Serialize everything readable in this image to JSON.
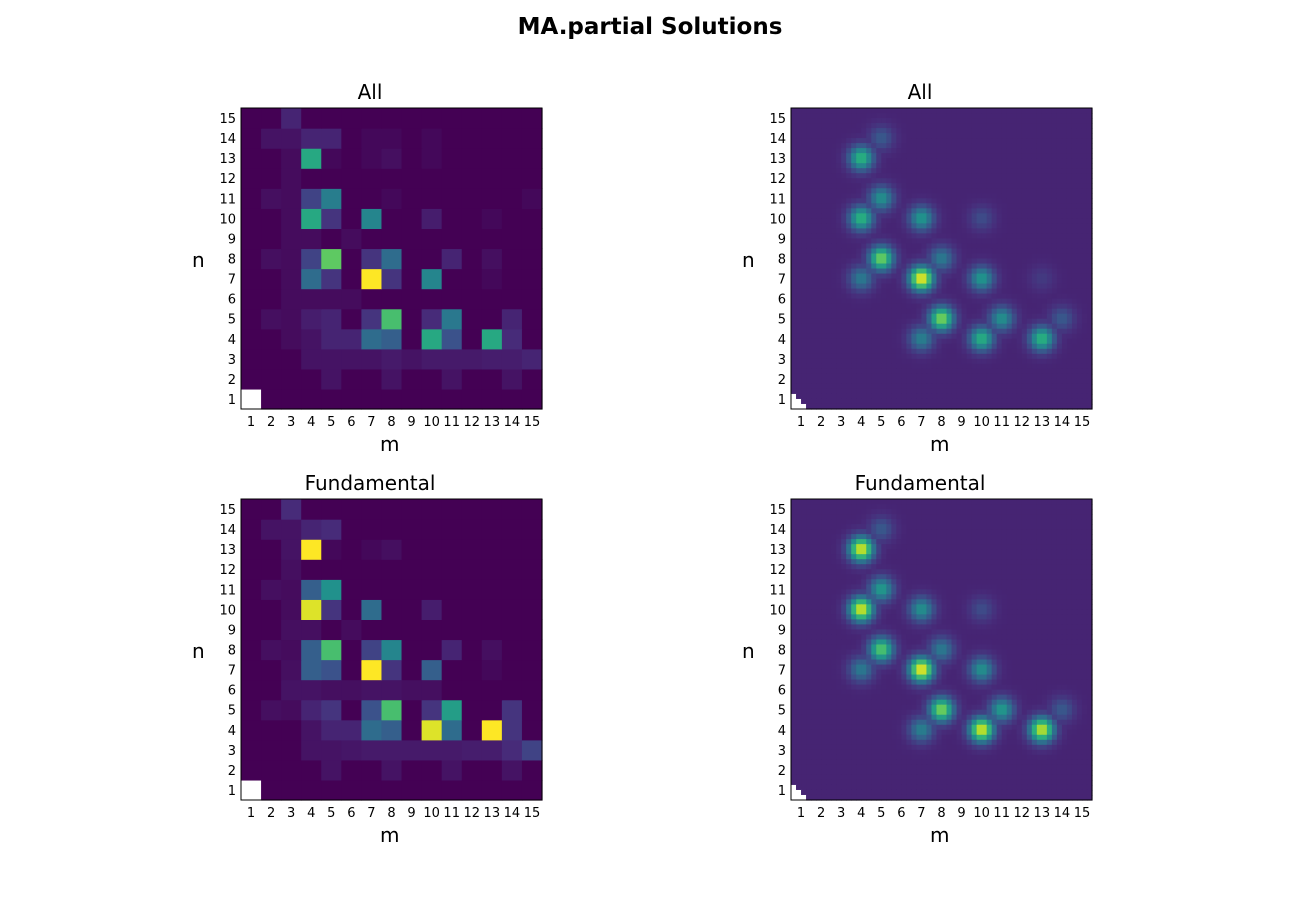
{
  "figure": {
    "title": "MA.partial Solutions"
  },
  "palette": [
    "#440154",
    "#472d7b",
    "#3b528b",
    "#2c728e",
    "#21918c",
    "#28ae80",
    "#5ec962",
    "#addc30",
    "#fde725"
  ],
  "chart_data": [
    {
      "type": "heatmap",
      "style": "discrete",
      "title": "All",
      "xlabel": "m",
      "ylabel": "n",
      "x_ticks": [
        "1",
        "2",
        "3",
        "4",
        "5",
        "6",
        "7",
        "8",
        "9",
        "10",
        "11",
        "12",
        "13",
        "14",
        "15"
      ],
      "y_ticks": [
        "1",
        "2",
        "3",
        "4",
        "5",
        "6",
        "7",
        "8",
        "9",
        "10",
        "11",
        "12",
        "13",
        "14",
        "15"
      ],
      "missing": "white",
      "grid": false,
      "legend": "none",
      "values": [
        [
          null,
          0,
          0,
          0,
          0,
          0,
          0,
          0,
          0,
          0,
          0,
          0,
          0,
          0,
          0
        ],
        [
          0,
          0,
          0,
          0,
          0.05,
          0,
          0,
          0.05,
          0,
          0,
          0.05,
          0,
          0,
          0.05,
          0
        ],
        [
          0,
          0,
          0,
          0.05,
          0.05,
          0.05,
          0.05,
          0.07,
          0.05,
          0.07,
          0.07,
          0.07,
          0.08,
          0.08,
          0.1
        ],
        [
          0,
          0,
          0.03,
          0.05,
          0.1,
          0.1,
          0.35,
          0.3,
          0,
          0.6,
          0.25,
          0,
          0.6,
          0.12,
          0
        ],
        [
          0,
          0.04,
          0.03,
          0.08,
          0.1,
          0,
          0.15,
          0.7,
          0,
          0.12,
          0.4,
          0,
          0,
          0.1,
          0
        ],
        [
          0,
          0,
          0.03,
          0.03,
          0.03,
          0.03,
          0,
          0,
          0,
          0,
          0,
          0,
          0,
          0,
          0
        ],
        [
          0,
          0,
          0.03,
          0.35,
          0.15,
          0,
          1.0,
          0.15,
          0,
          0.45,
          0,
          0,
          0.02,
          0,
          0
        ],
        [
          0,
          0.04,
          0.03,
          0.2,
          0.75,
          0,
          0.15,
          0.35,
          0,
          0,
          0.1,
          0,
          0.04,
          0,
          0
        ],
        [
          0,
          0,
          0.03,
          0.03,
          0,
          0.03,
          0,
          0,
          0,
          0,
          0,
          0,
          0,
          0,
          0
        ],
        [
          0,
          0,
          0.03,
          0.6,
          0.15,
          0,
          0.45,
          0,
          0,
          0.08,
          0,
          0,
          0.02,
          0,
          0
        ],
        [
          0,
          0.04,
          0.03,
          0.2,
          0.42,
          0,
          0,
          0.02,
          0,
          0,
          0,
          0,
          0,
          0,
          0.02
        ],
        [
          0,
          0,
          0.03,
          0,
          0,
          0,
          0,
          0,
          0,
          0,
          0,
          0,
          0,
          0,
          0
        ],
        [
          0,
          0,
          0.03,
          0.6,
          0.02,
          0,
          0.02,
          0.04,
          0,
          0.02,
          0,
          0,
          0,
          0,
          0
        ],
        [
          0,
          0.05,
          0.05,
          0.1,
          0.1,
          0,
          0.02,
          0.02,
          0,
          0.02,
          0,
          0,
          0,
          0,
          0
        ],
        [
          0,
          0,
          0.1,
          0,
          0,
          0,
          0,
          0,
          0,
          0,
          0,
          0,
          0,
          0,
          0
        ]
      ]
    },
    {
      "type": "heatmap",
      "style": "smooth",
      "title": "All",
      "xlabel": "m",
      "ylabel": "n",
      "x_ticks": [
        "1",
        "2",
        "3",
        "4",
        "5",
        "6",
        "7",
        "8",
        "9",
        "10",
        "11",
        "12",
        "13",
        "14",
        "15"
      ],
      "y_ticks": [
        "1",
        "2",
        "3",
        "4",
        "5",
        "6",
        "7",
        "8",
        "9",
        "10",
        "11",
        "12",
        "13",
        "14",
        "15"
      ],
      "missing": "white-corner",
      "grid": false,
      "legend": "none",
      "background": 0.1,
      "peaks": [
        {
          "m": 7,
          "n": 7,
          "v": 1.0
        },
        {
          "m": 8,
          "n": 5,
          "v": 0.8
        },
        {
          "m": 5,
          "n": 8,
          "v": 0.78
        },
        {
          "m": 4,
          "n": 13,
          "v": 0.62
        },
        {
          "m": 4,
          "n": 10,
          "v": 0.62
        },
        {
          "m": 5,
          "n": 11,
          "v": 0.45
        },
        {
          "m": 10,
          "n": 4,
          "v": 0.6
        },
        {
          "m": 11,
          "n": 5,
          "v": 0.45
        },
        {
          "m": 13,
          "n": 4,
          "v": 0.62
        },
        {
          "m": 7,
          "n": 10,
          "v": 0.48
        },
        {
          "m": 10,
          "n": 7,
          "v": 0.48
        },
        {
          "m": 8,
          "n": 8,
          "v": 0.35
        },
        {
          "m": 4,
          "n": 7,
          "v": 0.35
        },
        {
          "m": 7,
          "n": 4,
          "v": 0.38
        },
        {
          "m": 5,
          "n": 14,
          "v": 0.2
        },
        {
          "m": 14,
          "n": 5,
          "v": 0.2
        },
        {
          "m": 10,
          "n": 10,
          "v": 0.15
        },
        {
          "m": 13,
          "n": 7,
          "v": 0.08
        }
      ]
    },
    {
      "type": "heatmap",
      "style": "discrete",
      "title": "Fundamental",
      "xlabel": "m",
      "ylabel": "n",
      "x_ticks": [
        "1",
        "2",
        "3",
        "4",
        "5",
        "6",
        "7",
        "8",
        "9",
        "10",
        "11",
        "12",
        "13",
        "14",
        "15"
      ],
      "y_ticks": [
        "1",
        "2",
        "3",
        "4",
        "5",
        "6",
        "7",
        "8",
        "9",
        "10",
        "11",
        "12",
        "13",
        "14",
        "15"
      ],
      "missing": "white",
      "grid": false,
      "legend": "none",
      "values": [
        [
          null,
          0,
          0,
          0,
          0,
          0,
          0,
          0,
          0,
          0,
          0,
          0,
          0,
          0,
          0
        ],
        [
          0,
          0,
          0,
          0,
          0.05,
          0,
          0,
          0.05,
          0,
          0,
          0.05,
          0,
          0,
          0.05,
          0
        ],
        [
          0,
          0,
          0,
          0.05,
          0.05,
          0.06,
          0.07,
          0.07,
          0.07,
          0.07,
          0.07,
          0.08,
          0.08,
          0.12,
          0.2
        ],
        [
          0,
          0,
          0,
          0.05,
          0.1,
          0.1,
          0.35,
          0.3,
          0,
          0.95,
          0.35,
          0,
          1.0,
          0.15,
          0
        ],
        [
          0,
          0.04,
          0.03,
          0.1,
          0.15,
          0,
          0.25,
          0.7,
          0,
          0.15,
          0.55,
          0,
          0,
          0.15,
          0
        ],
        [
          0,
          0,
          0.05,
          0.05,
          0.04,
          0.04,
          0.05,
          0.05,
          0.04,
          0.04,
          0,
          0,
          0,
          0,
          0
        ],
        [
          0,
          0,
          0.04,
          0.3,
          0.25,
          0,
          1.0,
          0.15,
          0,
          0.3,
          0,
          0,
          0.02,
          0,
          0
        ],
        [
          0,
          0.04,
          0.03,
          0.3,
          0.7,
          0,
          0.2,
          0.45,
          0,
          0,
          0.1,
          0,
          0.04,
          0,
          0
        ],
        [
          0,
          0,
          0.04,
          0.04,
          0,
          0.03,
          0,
          0,
          0,
          0,
          0,
          0,
          0,
          0,
          0
        ],
        [
          0,
          0,
          0.03,
          0.95,
          0.15,
          0,
          0.35,
          0,
          0,
          0.08,
          0,
          0,
          0,
          0,
          0
        ],
        [
          0,
          0.04,
          0.03,
          0.3,
          0.5,
          0,
          0,
          0,
          0,
          0,
          0,
          0,
          0,
          0,
          0
        ],
        [
          0,
          0,
          0.04,
          0,
          0,
          0,
          0,
          0,
          0,
          0,
          0,
          0,
          0,
          0,
          0
        ],
        [
          0,
          0,
          0.05,
          1.0,
          0.02,
          0,
          0.02,
          0.04,
          0,
          0,
          0,
          0,
          0,
          0,
          0
        ],
        [
          0,
          0.05,
          0.05,
          0.1,
          0.12,
          0,
          0,
          0,
          0,
          0,
          0,
          0,
          0,
          0,
          0
        ],
        [
          0,
          0,
          0.12,
          0,
          0,
          0,
          0,
          0,
          0,
          0,
          0,
          0,
          0,
          0,
          0
        ]
      ]
    },
    {
      "type": "heatmap",
      "style": "smooth",
      "title": "Fundamental",
      "xlabel": "m",
      "ylabel": "n",
      "x_ticks": [
        "1",
        "2",
        "3",
        "4",
        "5",
        "6",
        "7",
        "8",
        "9",
        "10",
        "11",
        "12",
        "13",
        "14",
        "15"
      ],
      "y_ticks": [
        "1",
        "2",
        "3",
        "4",
        "5",
        "6",
        "7",
        "8",
        "9",
        "10",
        "11",
        "12",
        "13",
        "14",
        "15"
      ],
      "missing": "white-corner",
      "grid": false,
      "legend": "none",
      "background": 0.1,
      "peaks": [
        {
          "m": 7,
          "n": 7,
          "v": 1.0
        },
        {
          "m": 4,
          "n": 13,
          "v": 0.95
        },
        {
          "m": 4,
          "n": 10,
          "v": 0.95
        },
        {
          "m": 10,
          "n": 4,
          "v": 0.95
        },
        {
          "m": 13,
          "n": 4,
          "v": 0.92
        },
        {
          "m": 8,
          "n": 5,
          "v": 0.8
        },
        {
          "m": 5,
          "n": 8,
          "v": 0.72
        },
        {
          "m": 5,
          "n": 11,
          "v": 0.5
        },
        {
          "m": 11,
          "n": 5,
          "v": 0.5
        },
        {
          "m": 7,
          "n": 10,
          "v": 0.45
        },
        {
          "m": 10,
          "n": 7,
          "v": 0.45
        },
        {
          "m": 8,
          "n": 8,
          "v": 0.35
        },
        {
          "m": 4,
          "n": 7,
          "v": 0.35
        },
        {
          "m": 7,
          "n": 4,
          "v": 0.38
        },
        {
          "m": 5,
          "n": 14,
          "v": 0.2
        },
        {
          "m": 14,
          "n": 5,
          "v": 0.2
        },
        {
          "m": 10,
          "n": 10,
          "v": 0.15
        }
      ]
    }
  ]
}
